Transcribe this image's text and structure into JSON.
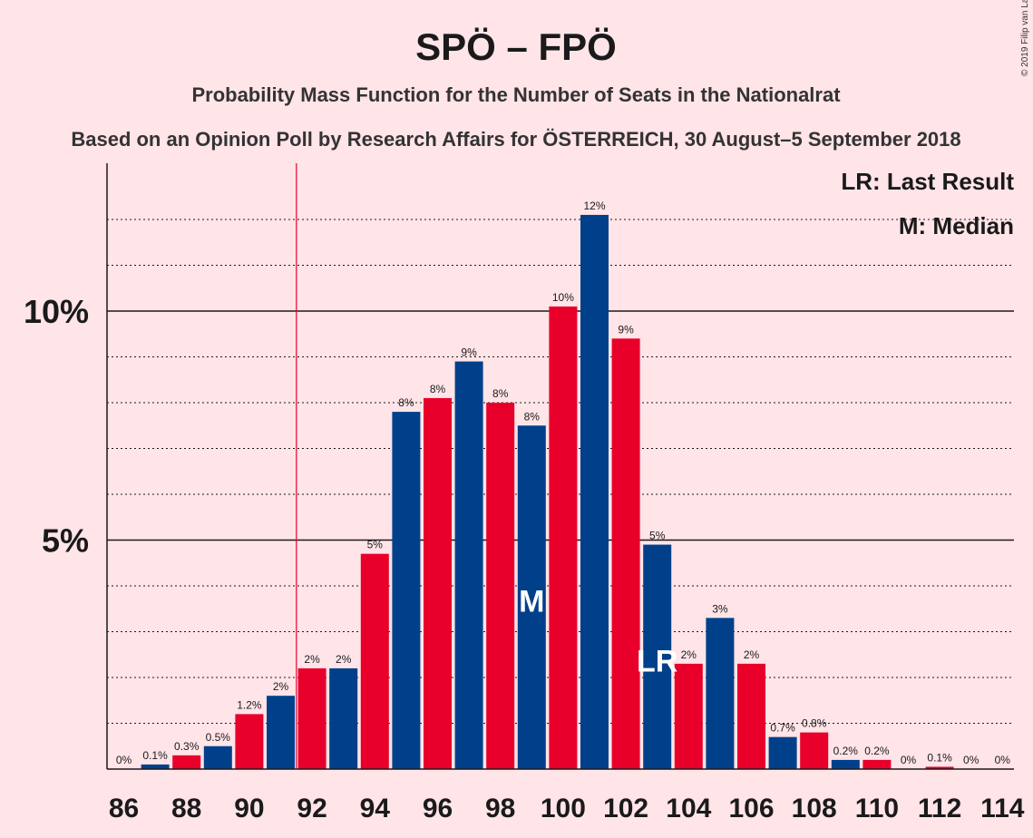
{
  "title": "SPÖ – FPÖ",
  "subtitle": "Probability Mass Function for the Number of Seats in the Nationalrat",
  "subtitle2": "Based on an Opinion Poll by Research Affairs for ÖSTERREICH, 30 August–5 September 2018",
  "copyright": "© 2019 Filip van Laenen",
  "legend": {
    "last_result": "LR: Last Result",
    "median": "M: Median"
  },
  "colors": {
    "background": "#FFE4E8",
    "spo": "#E8002B",
    "fpo": "#00408A",
    "last_result_line": "#E8002B"
  },
  "chart_data": {
    "type": "bar",
    "x": [
      86,
      87,
      88,
      89,
      90,
      91,
      92,
      93,
      94,
      95,
      96,
      97,
      98,
      99,
      100,
      101,
      102,
      103,
      104,
      105,
      106,
      107,
      108,
      109,
      110,
      111,
      112,
      113,
      114
    ],
    "values": [
      0,
      0.1,
      0.3,
      0.5,
      1.2,
      1.6,
      2.2,
      2.2,
      4.7,
      7.8,
      8.1,
      8.9,
      8.0,
      7.5,
      10.1,
      12.1,
      9.4,
      4.9,
      2.3,
      3.3,
      2.3,
      0.7,
      0.8,
      0.2,
      0.2,
      0,
      0.05,
      0,
      0
    ],
    "value_labels": [
      "0%",
      "0.1%",
      "0.3%",
      "0.5%",
      "1.2%",
      "2%",
      "2%",
      "2%",
      "5%",
      "8%",
      "8%",
      "9%",
      "8%",
      "8%",
      "10%",
      "12%",
      "9%",
      "5%",
      "2%",
      "3%",
      "2%",
      "0.7%",
      "0.8%",
      "0.2%",
      "0.2%",
      "0%",
      "0.1%",
      "0%",
      "0%"
    ],
    "bar_colors": [
      "fpo",
      "fpo",
      "spo",
      "fpo",
      "spo",
      "fpo",
      "spo",
      "fpo",
      "spo",
      "fpo",
      "spo",
      "fpo",
      "spo",
      "fpo",
      "spo",
      "fpo",
      "spo",
      "fpo",
      "spo",
      "fpo",
      "spo",
      "fpo",
      "spo",
      "fpo",
      "spo",
      "fpo",
      "spo",
      "fpo",
      "spo"
    ],
    "x_tick_labels": [
      "86",
      "88",
      "90",
      "92",
      "94",
      "96",
      "98",
      "100",
      "102",
      "104",
      "106",
      "108",
      "110",
      "112",
      "114"
    ],
    "y_ticks": [
      {
        "value": 5,
        "label": "5%"
      },
      {
        "value": 10,
        "label": "10%"
      }
    ],
    "ylim": [
      0,
      13
    ],
    "grid": "dotted every 1%",
    "last_result_seat": 91.5,
    "median_seat": 99,
    "median_marker": "M",
    "last_result_bar_seat": 103,
    "last_result_marker": "LR",
    "legend_position": "top-right"
  }
}
